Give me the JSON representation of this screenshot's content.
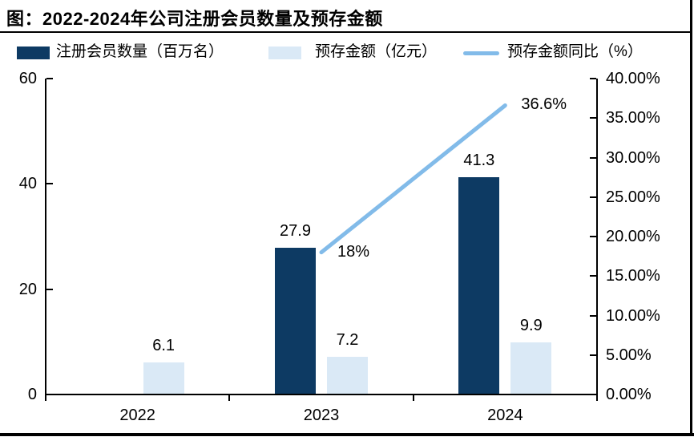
{
  "title": "图：2022-2024年公司注册会员数量及预存金额",
  "colors": {
    "registered_members_bar": "#0D3A63",
    "prepaid_amount_bar": "#DAE9F6",
    "yoy_line": "#82BBE9",
    "axis": "#000000",
    "background": "#FFFFFF"
  },
  "legend": {
    "items": [
      {
        "label": "注册会员数量（百万名）",
        "swatch": "filled-square",
        "color": "#0D3A63"
      },
      {
        "label": "预存金额（亿元）",
        "swatch": "filled-square",
        "color": "#DAE9F6"
      },
      {
        "label": "预存金额同比（%）",
        "swatch": "line",
        "color": "#82BBE9"
      }
    ]
  },
  "chart_data": {
    "type": "bar",
    "title": "图：2022-2024年公司注册会员数量及预存金额",
    "categories": [
      "2022",
      "2023",
      "2024"
    ],
    "series": [
      {
        "key": "registered_members",
        "name": "注册会员数量（百万名）",
        "type": "bar",
        "axis": "left",
        "color": "#0D3A63",
        "values": [
          null,
          27.9,
          41.3
        ],
        "point_labels": [
          "",
          "27.9",
          "41.3"
        ]
      },
      {
        "key": "prepaid_amount",
        "name": "预存金额（亿元）",
        "type": "bar",
        "axis": "left",
        "color": "#DAE9F6",
        "values": [
          6.1,
          7.2,
          9.9
        ],
        "point_labels": [
          "6.1",
          "7.2",
          "9.9"
        ]
      },
      {
        "key": "prepaid_yoy",
        "name": "预存金额同比（%）",
        "type": "line",
        "axis": "right",
        "color": "#82BBE9",
        "values": [
          null,
          18,
          36.6
        ],
        "point_labels": [
          "",
          "18%",
          "36.6%"
        ]
      }
    ],
    "left_axis": {
      "min": 0,
      "max": 60,
      "ticks": [
        "0",
        "20",
        "40",
        "60"
      ]
    },
    "right_axis": {
      "min": 0,
      "max": 40,
      "ticks": [
        "0.00%",
        "5.00%",
        "10.00%",
        "15.00%",
        "20.00%",
        "25.00%",
        "30.00%",
        "35.00%",
        "40.00%"
      ]
    },
    "grid": false,
    "legend_position": "top"
  }
}
